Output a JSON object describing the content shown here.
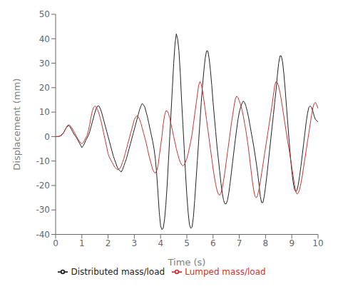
{
  "chart_data": {
    "type": "line",
    "xlabel": "Time (s)",
    "ylabel": "Displacement (mm)",
    "xlim": [
      0,
      10
    ],
    "ylim": [
      -40,
      50
    ],
    "xticks": [
      0,
      1,
      2,
      3,
      4,
      5,
      6,
      7,
      8,
      9,
      10
    ],
    "yticks": [
      -40,
      -30,
      -20,
      -10,
      0,
      10,
      20,
      30,
      40,
      50
    ],
    "grid": false,
    "legend": "bottom",
    "x": [
      0.0,
      0.05,
      0.1,
      0.15,
      0.2,
      0.25,
      0.3,
      0.35,
      0.4,
      0.45,
      0.5,
      0.55,
      0.6,
      0.65,
      0.7,
      0.75,
      0.8,
      0.85,
      0.9,
      0.95,
      1.0,
      1.05,
      1.1,
      1.15,
      1.2,
      1.25,
      1.3,
      1.35,
      1.4,
      1.45,
      1.5,
      1.55,
      1.6,
      1.65,
      1.7,
      1.75,
      1.8,
      1.85,
      1.9,
      1.95,
      2.0,
      2.05,
      2.1,
      2.15,
      2.2,
      2.25,
      2.3,
      2.35,
      2.4,
      2.45,
      2.5,
      2.55,
      2.6,
      2.65,
      2.7,
      2.75,
      2.8,
      2.85,
      2.9,
      2.95,
      3.0,
      3.05,
      3.1,
      3.15,
      3.2,
      3.25,
      3.3,
      3.35,
      3.4,
      3.45,
      3.5,
      3.55,
      3.6,
      3.65,
      3.7,
      3.75,
      3.8,
      3.85,
      3.9,
      3.95,
      4.0,
      4.05,
      4.1,
      4.15,
      4.2,
      4.25,
      4.3,
      4.35,
      4.4,
      4.45,
      4.5,
      4.55,
      4.6,
      4.65,
      4.7,
      4.75,
      4.8,
      4.85,
      4.9,
      4.95,
      5.0,
      5.05,
      5.1,
      5.15,
      5.2,
      5.25,
      5.3,
      5.35,
      5.4,
      5.45,
      5.5,
      5.55,
      5.6,
      5.65,
      5.7,
      5.75,
      5.8,
      5.85,
      5.9,
      5.95,
      6.0,
      6.05,
      6.1,
      6.15,
      6.2,
      6.25,
      6.3,
      6.35,
      6.4,
      6.45,
      6.5,
      6.55,
      6.6,
      6.65,
      6.7,
      6.75,
      6.8,
      6.85,
      6.9,
      6.95,
      7.0,
      7.05,
      7.1,
      7.15,
      7.2,
      7.25,
      7.3,
      7.35,
      7.4,
      7.45,
      7.5,
      7.55,
      7.6,
      7.65,
      7.7,
      7.75,
      7.8,
      7.85,
      7.9,
      7.95,
      8.0,
      8.05,
      8.1,
      8.15,
      8.2,
      8.25,
      8.3,
      8.35,
      8.4,
      8.45,
      8.5,
      8.55,
      8.6,
      8.65,
      8.7,
      8.75,
      8.8,
      8.85,
      8.9,
      8.95,
      9.0,
      9.05,
      9.1,
      9.15,
      9.2,
      9.25,
      9.3,
      9.35,
      9.4,
      9.45,
      9.5,
      9.55,
      9.6,
      9.65,
      9.7,
      9.75,
      9.8,
      9.85,
      9.9,
      9.95,
      10.0
    ],
    "series": [
      {
        "name": "Distributed mass/load",
        "color": "#222222",
        "values": [
          0.0,
          0.0,
          0.0,
          0.2,
          0.5,
          1.0,
          1.5,
          2.5,
          3.5,
          4.2,
          4.5,
          4.0,
          3.0,
          2.0,
          1.0,
          0.2,
          -0.5,
          -1.5,
          -2.5,
          -3.5,
          -4.5,
          -3.8,
          -2.8,
          -1.5,
          -0.5,
          0.5,
          2.0,
          4.0,
          6.0,
          8.0,
          10.0,
          11.5,
          12.5,
          12.5,
          11.5,
          10.0,
          8.0,
          6.0,
          4.0,
          2.0,
          0.0,
          -2.0,
          -4.0,
          -6.0,
          -8.0,
          -9.5,
          -11.0,
          -12.5,
          -13.5,
          -14.0,
          -14.5,
          -13.5,
          -12.0,
          -10.5,
          -9.0,
          -7.0,
          -5.0,
          -3.0,
          -1.0,
          1.0,
          3.0,
          5.0,
          7.0,
          9.0,
          11.0,
          12.5,
          13.5,
          13.0,
          12.0,
          10.0,
          8.0,
          5.5,
          3.0,
          0.5,
          -2.0,
          -5.0,
          -9.0,
          -15.0,
          -23.0,
          -31.0,
          -36.5,
          -38.0,
          -37.5,
          -34.0,
          -28.0,
          -20.0,
          -10.0,
          0.0,
          10.0,
          20.0,
          30.0,
          38.0,
          42.0,
          40.0,
          35.0,
          26.0,
          15.0,
          5.0,
          -5.0,
          -15.0,
          -24.0,
          -31.0,
          -36.0,
          -37.5,
          -37.0,
          -33.0,
          -26.0,
          -18.0,
          -10.0,
          -2.0,
          6.0,
          14.0,
          21.0,
          27.0,
          32.0,
          35.0,
          35.0,
          32.0,
          27.0,
          21.0,
          14.0,
          8.0,
          2.0,
          -4.0,
          -9.0,
          -14.0,
          -19.0,
          -23.0,
          -26.0,
          -27.5,
          -27.5,
          -26.0,
          -23.0,
          -19.0,
          -14.5,
          -10.0,
          -5.5,
          -1.0,
          3.0,
          7.0,
          10.0,
          12.0,
          13.5,
          14.5,
          14.0,
          12.5,
          10.5,
          8.0,
          5.0,
          2.0,
          -1.0,
          -4.0,
          -7.5,
          -11.0,
          -15.0,
          -19.5,
          -24.5,
          -27.0,
          -27.0,
          -24.5,
          -20.5,
          -16.0,
          -11.0,
          -6.0,
          -1.0,
          4.0,
          9.0,
          14.0,
          19.0,
          25.0,
          30.0,
          33.0,
          33.0,
          30.5,
          25.5,
          19.0,
          12.0,
          5.0,
          -2.0,
          -8.5,
          -14.0,
          -18.5,
          -21.5,
          -22.5,
          -22.0,
          -19.5,
          -16.0,
          -12.0,
          -7.5,
          -3.0,
          1.5,
          6.0,
          9.5,
          12.0,
          12.5,
          12.0,
          10.5,
          8.5,
          7.0,
          6.5,
          6.0
        ]
      },
      {
        "name": "Lumped mass/load",
        "color": "#cc3333",
        "values": [
          0.0,
          0.0,
          0.0,
          0.1,
          0.3,
          0.8,
          1.5,
          2.5,
          3.5,
          4.5,
          4.8,
          4.5,
          3.8,
          3.0,
          2.0,
          1.0,
          0.0,
          -1.0,
          -1.8,
          -2.5,
          -3.0,
          -2.5,
          -1.5,
          -0.5,
          0.5,
          2.5,
          5.0,
          8.0,
          10.5,
          12.0,
          12.5,
          12.0,
          11.0,
          9.5,
          7.5,
          5.5,
          3.0,
          0.5,
          -2.0,
          -4.5,
          -7.0,
          -8.5,
          -9.5,
          -10.5,
          -11.5,
          -12.5,
          -13.0,
          -13.5,
          -13.5,
          -13.0,
          -12.0,
          -10.5,
          -9.0,
          -7.0,
          -5.0,
          -3.0,
          -1.0,
          1.0,
          3.0,
          5.0,
          7.0,
          8.0,
          8.5,
          8.0,
          7.0,
          5.5,
          3.5,
          1.5,
          -0.5,
          -2.5,
          -5.0,
          -7.5,
          -9.5,
          -11.5,
          -13.5,
          -14.5,
          -15.0,
          -14.0,
          -12.0,
          -8.0,
          -4.0,
          0.0,
          5.0,
          8.5,
          10.5,
          10.5,
          9.5,
          7.5,
          5.0,
          2.5,
          0.0,
          -2.5,
          -5.0,
          -7.0,
          -9.0,
          -10.5,
          -11.5,
          -12.0,
          -11.5,
          -10.5,
          -9.0,
          -7.0,
          -4.5,
          -2.0,
          1.0,
          5.0,
          9.0,
          13.0,
          17.0,
          21.0,
          22.5,
          21.5,
          18.5,
          15.0,
          11.0,
          7.0,
          3.0,
          -1.0,
          -5.0,
          -9.0,
          -13.0,
          -16.5,
          -19.5,
          -22.0,
          -23.5,
          -24.0,
          -23.0,
          -21.0,
          -18.0,
          -14.5,
          -10.5,
          -6.5,
          -2.5,
          1.5,
          5.5,
          9.0,
          12.5,
          15.5,
          16.5,
          16.0,
          14.5,
          13.0,
          11.0,
          8.5,
          5.5,
          2.5,
          -1.0,
          -5.0,
          -9.5,
          -14.0,
          -18.5,
          -22.0,
          -24.5,
          -25.0,
          -24.0,
          -21.5,
          -18.5,
          -15.0,
          -11.5,
          -8.0,
          -4.5,
          -1.0,
          2.5,
          6.0,
          9.5,
          13.0,
          17.0,
          21.0,
          22.5,
          22.0,
          20.5,
          18.0,
          15.0,
          11.5,
          8.0,
          4.5,
          1.0,
          -2.5,
          -5.5,
          -9.0,
          -12.5,
          -16.0,
          -19.5,
          -22.5,
          -23.5,
          -23.0,
          -21.5,
          -19.0,
          -16.0,
          -12.5,
          -9.0,
          -5.5,
          -2.0,
          1.5,
          5.0,
          8.5,
          11.5,
          13.5,
          14.0,
          13.0,
          11.5
        ]
      }
    ]
  }
}
